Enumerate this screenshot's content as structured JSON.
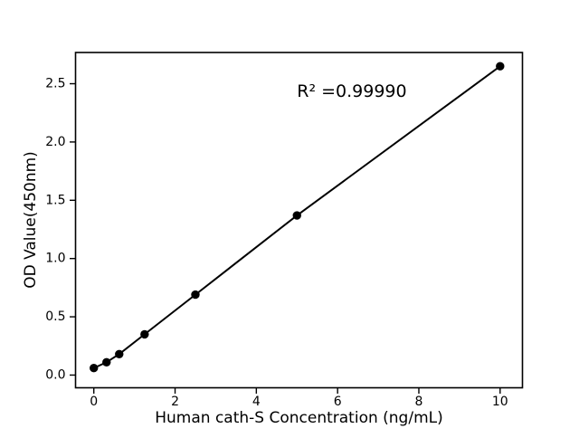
{
  "figure": {
    "background": "#ffffff"
  },
  "chart_data": {
    "type": "scatter",
    "title": "",
    "xlabel": "Human cath-S Concentration (ng/mL)",
    "ylabel": "OD Value(450nm)",
    "x": [
      0,
      0.3125,
      0.625,
      1.25,
      2.5,
      5,
      10
    ],
    "y": [
      0.06,
      0.11,
      0.18,
      0.35,
      0.69,
      1.37,
      2.65
    ],
    "line_through_points": true,
    "annotation": {
      "text": "R² =0.99990",
      "x": 5.0,
      "y": 2.43
    },
    "xticks": {
      "values": [
        0,
        2,
        4,
        6,
        8,
        10
      ],
      "labels": [
        "0",
        "2",
        "4",
        "6",
        "8",
        "10"
      ]
    },
    "yticks": {
      "values": [
        0.0,
        0.5,
        1.0,
        1.5,
        2.0,
        2.5
      ],
      "labels": [
        "0.0",
        "0.5",
        "1.0",
        "1.5",
        "2.0",
        "2.5"
      ]
    },
    "xlim": [
      -0.45,
      10.55
    ],
    "ylim": [
      -0.109,
      2.768
    ],
    "grid": false,
    "legend": null,
    "line_color": "#000000",
    "marker_color": "#000000",
    "axis_color": "#000000"
  }
}
